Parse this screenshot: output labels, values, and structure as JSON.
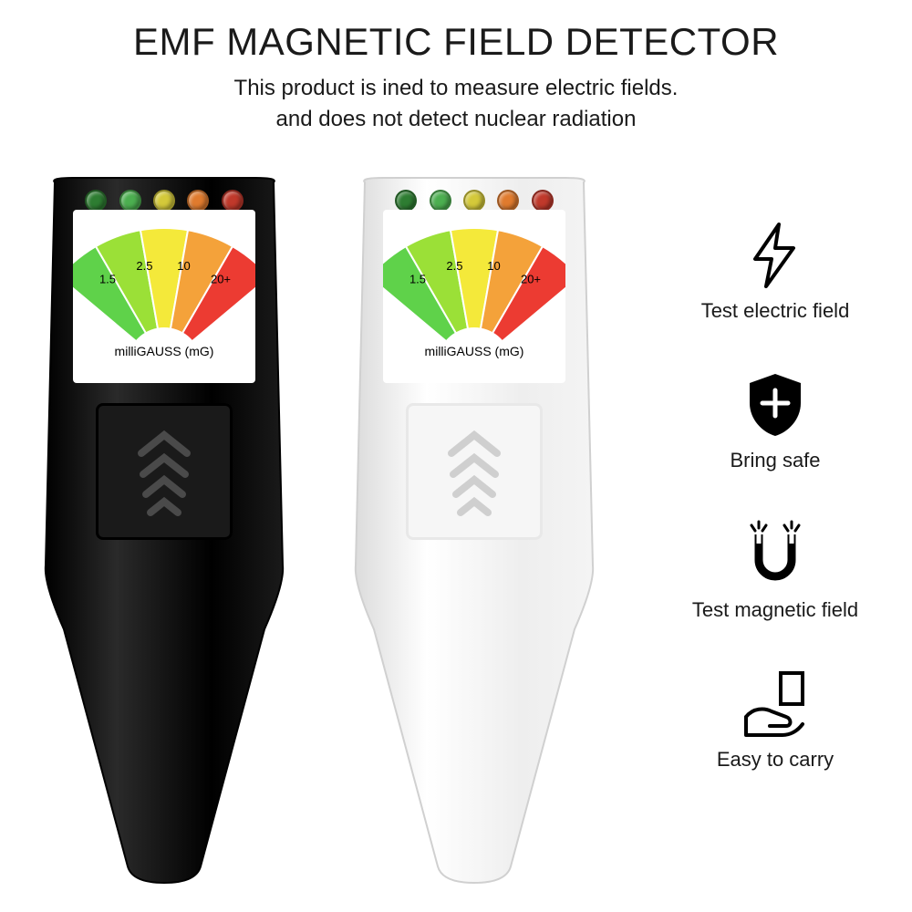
{
  "header": {
    "title": "EMF MAGNETIC FIELD DETECTOR",
    "subtitle_line1": "This product is ined to measure electric fields.",
    "subtitle_line2": "and does not detect nuclear radiation"
  },
  "gauge": {
    "values": [
      "1.5",
      "2.5",
      "10",
      "20+"
    ],
    "unit_label": "milliGAUSS (mG)",
    "band_colors": [
      "#5fd24a",
      "#9be037",
      "#f4e93a",
      "#f4a23a",
      "#ec3b32"
    ],
    "led_colors": [
      "#2e7d32",
      "#4caf50",
      "#d4c93a",
      "#e07b2e",
      "#c0392b"
    ]
  },
  "devices": [
    {
      "name": "black",
      "body_fill": "#111111",
      "body_highlight": "#2a2a2a",
      "thumb_bg": "#1a1a1a",
      "arrow_color": "#4a4a4a"
    },
    {
      "name": "white",
      "body_fill": "#f3f3f3",
      "body_highlight": "#ffffff",
      "thumb_bg": "#f6f6f6",
      "arrow_color": "#cfcfcf"
    }
  ],
  "features": [
    {
      "icon": "bolt",
      "label": "Test electric field"
    },
    {
      "icon": "shield",
      "label": "Bring safe"
    },
    {
      "icon": "magnet",
      "label": "Test magnetic field"
    },
    {
      "icon": "hand",
      "label": "Easy to carry"
    }
  ],
  "style": {
    "title_fontsize": 42,
    "subtitle_fontsize": 24,
    "feature_fontsize": 22,
    "text_color": "#1a1a1a",
    "background": "#ffffff",
    "icon_stroke": "#000000"
  }
}
